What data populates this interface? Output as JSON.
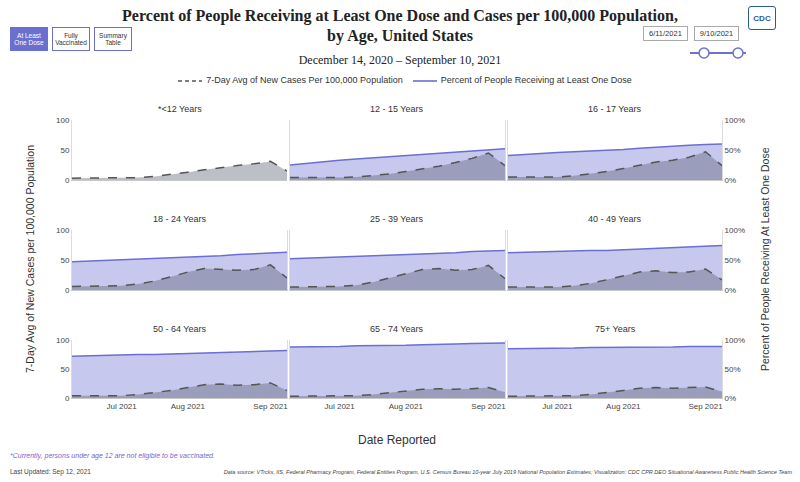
{
  "header": {
    "title": [
      "Percent of People Receiving at Least One Dose and Cases per 100,000 Population,",
      "by Age, United States"
    ],
    "subtitle": "December 14, 2020 – September 10, 2021",
    "logo": "CDC",
    "buttons": [
      "At Least One Dose",
      "Fully Vaccinated",
      "Summary Table"
    ],
    "active_button": "At Least One Dose",
    "date_inputs": [
      "6/11/2021",
      "9/10/2021"
    ]
  },
  "axes": {
    "x_label": "Date Reported",
    "y_label": "7-Day Avg of New Cases per 100,000 Population",
    "y2_label": "Percent of People Receiving At Least One Dose"
  },
  "chart_data": [
    {
      "type": "area",
      "title": "*<12 Years",
      "grid": false,
      "categories": [
        null,
        null,
        null,
        null,
        null,
        null,
        null,
        null,
        null,
        null,
        null,
        null,
        null,
        null
      ],
      "ylim": [
        0,
        100
      ],
      "yticks": [
        0,
        50,
        100
      ],
      "series": [
        {
          "name": "7-Day Avg of New Cases Per 100,000 Population",
          "color": "#52586a",
          "line_style": "dashed",
          "type": "area",
          "values": [
            3,
            3,
            3,
            3,
            4,
            6,
            9,
            13,
            17,
            21,
            24,
            27,
            31,
            15
          ]
        }
      ]
    },
    {
      "type": "area",
      "title": "12 - 15 Years",
      "grid": false,
      "categories": [
        null,
        null,
        null,
        null,
        null,
        null,
        null,
        null,
        null,
        null,
        null,
        null,
        null,
        null
      ],
      "ylim": [
        0,
        100
      ],
      "y2lim": [
        0,
        100
      ],
      "series": [
        {
          "name": "7-Day Avg of New Cases Per 100,000 Population",
          "color": "#52586a",
          "line_style": "dashed",
          "type": "area",
          "values": [
            4,
            4,
            3,
            4,
            5,
            7,
            10,
            14,
            18,
            23,
            29,
            36,
            45,
            24
          ]
        },
        {
          "name": "Percent of People Receiving at Least One Dose",
          "color": "#6b6fd0",
          "line_style": "solid",
          "type": "area",
          "axis": "y2",
          "values": [
            25,
            28,
            31,
            33,
            35,
            37,
            39,
            41,
            43,
            45,
            47,
            49,
            51,
            52
          ]
        }
      ]
    },
    {
      "type": "area",
      "title": "16 - 17 Years",
      "grid": false,
      "categories": [
        null,
        null,
        null,
        null,
        null,
        null,
        null,
        null,
        null,
        null,
        null,
        null,
        null,
        null
      ],
      "ylim": [
        0,
        100
      ],
      "y2lim": [
        0,
        100
      ],
      "y2ticks": [
        {
          "value": 0,
          "label": "0%"
        },
        {
          "value": 50,
          "label": "50%"
        },
        {
          "value": 100,
          "label": "100%"
        }
      ],
      "series": [
        {
          "name": "7-Day Avg of New Cases Per 100,000 Population",
          "color": "#52586a",
          "line_style": "dashed",
          "type": "area",
          "values": [
            5,
            5,
            4,
            5,
            7,
            10,
            14,
            19,
            25,
            30,
            33,
            38,
            47,
            24
          ]
        },
        {
          "name": "Percent of People Receiving at Least One Dose",
          "color": "#6b6fd0",
          "line_style": "solid",
          "type": "area",
          "axis": "y2",
          "values": [
            41,
            43,
            44,
            46,
            47,
            48,
            50,
            51,
            53,
            55,
            56,
            58,
            59,
            60
          ]
        }
      ]
    },
    {
      "type": "area",
      "title": "18 - 24 Years",
      "grid": false,
      "categories": [
        null,
        null,
        null,
        null,
        null,
        null,
        null,
        null,
        null,
        null,
        null,
        null,
        null,
        null
      ],
      "ylim": [
        0,
        100
      ],
      "yticks": [
        0,
        50,
        100
      ],
      "y2lim": [
        0,
        100
      ],
      "series": [
        {
          "name": "7-Day Avg of New Cases Per 100,000 Population",
          "color": "#52586a",
          "line_style": "dashed",
          "type": "area",
          "values": [
            6,
            6,
            6,
            7,
            10,
            15,
            22,
            30,
            36,
            35,
            33,
            34,
            42,
            20
          ]
        },
        {
          "name": "Percent of People Receiving at Least One Dose",
          "color": "#6b6fd0",
          "line_style": "solid",
          "type": "area",
          "axis": "y2",
          "values": [
            47,
            48,
            49,
            50,
            51,
            52,
            53,
            54,
            56,
            57,
            59,
            60,
            62,
            63
          ]
        }
      ]
    },
    {
      "type": "area",
      "title": "25 - 39 Years",
      "grid": false,
      "categories": [
        null,
        null,
        null,
        null,
        null,
        null,
        null,
        null,
        null,
        null,
        null,
        null,
        null,
        null
      ],
      "ylim": [
        0,
        100
      ],
      "y2lim": [
        0,
        100
      ],
      "series": [
        {
          "name": "7-Day Avg of New Cases Per 100,000 Population",
          "color": "#52586a",
          "line_style": "dashed",
          "type": "area",
          "values": [
            5,
            5,
            5,
            6,
            8,
            13,
            20,
            27,
            34,
            36,
            33,
            34,
            41,
            19
          ]
        },
        {
          "name": "Percent of People Receiving at Least One Dose",
          "color": "#6b6fd0",
          "line_style": "solid",
          "type": "area",
          "axis": "y2",
          "values": [
            52,
            53,
            54,
            55,
            56,
            56,
            57,
            58,
            60,
            61,
            62,
            64,
            65,
            66
          ]
        }
      ]
    },
    {
      "type": "area",
      "title": "40 - 49 Years",
      "grid": false,
      "categories": [
        null,
        null,
        null,
        null,
        null,
        null,
        null,
        null,
        null,
        null,
        null,
        null,
        null,
        null
      ],
      "ylim": [
        0,
        100
      ],
      "y2lim": [
        0,
        100
      ],
      "y2ticks": [
        {
          "value": 0,
          "label": "0%"
        },
        {
          "value": 50,
          "label": "50%"
        },
        {
          "value": 100,
          "label": "100%"
        }
      ],
      "series": [
        {
          "name": "7-Day Avg of New Cases Per 100,000 Population",
          "color": "#52586a",
          "line_style": "dashed",
          "type": "area",
          "values": [
            5,
            5,
            5,
            5,
            7,
            11,
            17,
            24,
            30,
            32,
            29,
            30,
            35,
            17
          ]
        },
        {
          "name": "Percent of People Receiving at Least One Dose",
          "color": "#6b6fd0",
          "line_style": "solid",
          "type": "area",
          "axis": "y2",
          "values": [
            62,
            63,
            64,
            64,
            65,
            66,
            66,
            67,
            68,
            69,
            70,
            72,
            73,
            74
          ]
        }
      ]
    },
    {
      "type": "area",
      "title": "50 - 64 Years",
      "grid": false,
      "categories": [
        null,
        null,
        null,
        "Jul 2021",
        null,
        null,
        null,
        "Aug 2021",
        null,
        null,
        null,
        null,
        "Sep 2021",
        null
      ],
      "ylim": [
        0,
        100
      ],
      "yticks": [
        0,
        50,
        100
      ],
      "y2lim": [
        0,
        100
      ],
      "series": [
        {
          "name": "7-Day Avg of New Cases Per 100,000 Population",
          "color": "#52586a",
          "line_style": "dashed",
          "type": "area",
          "values": [
            4,
            4,
            4,
            4,
            6,
            9,
            13,
            18,
            23,
            24,
            22,
            23,
            26,
            13
          ]
        },
        {
          "name": "Percent of People Receiving at Least One Dose",
          "color": "#6b6fd0",
          "line_style": "solid",
          "type": "area",
          "axis": "y2",
          "values": [
            72,
            73,
            73,
            74,
            75,
            75,
            76,
            77,
            77,
            78,
            79,
            80,
            81,
            82
          ]
        }
      ]
    },
    {
      "type": "area",
      "title": "65 - 74 Years",
      "grid": false,
      "categories": [
        null,
        null,
        null,
        "Jul 2021",
        null,
        null,
        null,
        "Aug 2021",
        null,
        null,
        null,
        null,
        "Sep 2021",
        null
      ],
      "ylim": [
        0,
        100
      ],
      "y2lim": [
        0,
        100
      ],
      "series": [
        {
          "name": "7-Day Avg of New Cases Per 100,000 Population",
          "color": "#52586a",
          "line_style": "dashed",
          "type": "area",
          "values": [
            3,
            3,
            3,
            3,
            4,
            6,
            9,
            12,
            15,
            16,
            15,
            16,
            18,
            10
          ]
        },
        {
          "name": "Percent of People Receiving at Least One Dose",
          "color": "#6b6fd0",
          "line_style": "solid",
          "type": "area",
          "axis": "y2",
          "values": [
            88,
            88,
            89,
            89,
            90,
            90,
            91,
            91,
            92,
            92,
            93,
            94,
            94,
            95
          ]
        }
      ]
    },
    {
      "type": "area",
      "title": "75+ Years",
      "grid": false,
      "categories": [
        null,
        null,
        null,
        "Jul 2021",
        null,
        null,
        null,
        "Aug 2021",
        null,
        null,
        null,
        null,
        "Sep 2021",
        null
      ],
      "ylim": [
        0,
        100
      ],
      "y2lim": [
        0,
        100
      ],
      "y2ticks": [
        {
          "value": 0,
          "label": "0%"
        },
        {
          "value": 50,
          "label": "50%"
        },
        {
          "value": 100,
          "label": "100%"
        }
      ],
      "series": [
        {
          "name": "7-Day Avg of New Cases Per 100,000 Population",
          "color": "#52586a",
          "line_style": "dashed",
          "type": "area",
          "values": [
            3,
            3,
            3,
            3,
            4,
            6,
            9,
            13,
            17,
            18,
            17,
            18,
            19,
            11
          ]
        },
        {
          "name": "Percent of People Receiving at Least One Dose",
          "color": "#6b6fd0",
          "line_style": "solid",
          "type": "area",
          "axis": "y2",
          "values": [
            85,
            85,
            86,
            86,
            86,
            87,
            87,
            87,
            88,
            88,
            88,
            89,
            89,
            89
          ]
        }
      ]
    }
  ],
  "footer": {
    "footnote": "*Currently, persons under age 12 are not eligible to be vaccinated.",
    "updated": "Last Updated: Sep 12, 2021",
    "source": "Data source: VTrcks, IIS, Federal Pharmacy Program, Federal Entities Program, U.S. Census Bureau 10-year July 2019 National Population Estimates; Visualization: CDC CPR DEO Situational Awareness Public Health Science Team"
  }
}
